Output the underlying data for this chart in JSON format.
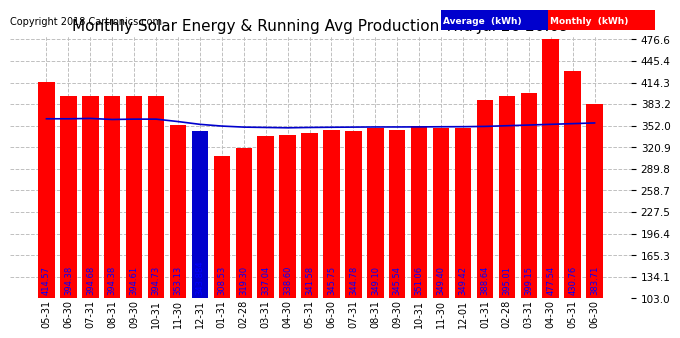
{
  "title": "Monthly Solar Energy & Running Avg Production Thu Jul 26 20:09",
  "copyright": "Copyright 2018 Cartronics.com",
  "categories": [
    "05-31",
    "06-30",
    "07-31",
    "08-31",
    "09-30",
    "10-31",
    "11-30",
    "12-31",
    "01-31",
    "02-28",
    "03-31",
    "04-30",
    "05-31",
    "06-30",
    "07-31",
    "08-31",
    "09-30",
    "10-31",
    "11-30",
    "12-01",
    "01-31",
    "02-28",
    "03-31",
    "04-30",
    "05-31",
    "06-30"
  ],
  "values": [
    414.57,
    394.38,
    394.68,
    394.38,
    394.61,
    394.73,
    353.13,
    343.884,
    308.53,
    319.3,
    337.04,
    338.6,
    341.58,
    345.75,
    344.78,
    349.1,
    345.54,
    351.06,
    349.4,
    349.42,
    388.64,
    395.01,
    399.15,
    477.54,
    430.76,
    383.71
  ],
  "avg_values": [
    362.0,
    362.0,
    362.5,
    361.0,
    361.5,
    361.5,
    358.0,
    354.0,
    351.5,
    350.0,
    349.5,
    349.0,
    349.5,
    349.8,
    350.0,
    350.2,
    350.2,
    350.3,
    350.5,
    350.6,
    351.0,
    352.0,
    353.0,
    354.0,
    355.0,
    356.0
  ],
  "bar_color": "#ff0000",
  "avg_color": "#0000cd",
  "special_bar_color": "#0000cd",
  "special_index": 7,
  "ylim_min": 103.0,
  "ylim_max": 476.6,
  "yticks": [
    103.0,
    134.1,
    165.3,
    196.4,
    227.5,
    258.7,
    289.8,
    320.9,
    352.0,
    383.2,
    414.3,
    445.4,
    476.6
  ],
  "bg_color": "#ffffff",
  "plot_bg_color": "#ffffff",
  "grid_color": "#c0c0c0",
  "legend_avg_label": "Average  (kWh)",
  "legend_monthly_label": "Monthly  (kWh)",
  "legend_avg_bg": "#0000cd",
  "legend_monthly_bg": "#ff0000",
  "title_fontsize": 11,
  "copyright_fontsize": 7,
  "bar_label_fontsize": 6,
  "tick_fontsize": 7.5,
  "xlabel_fontsize": 7
}
